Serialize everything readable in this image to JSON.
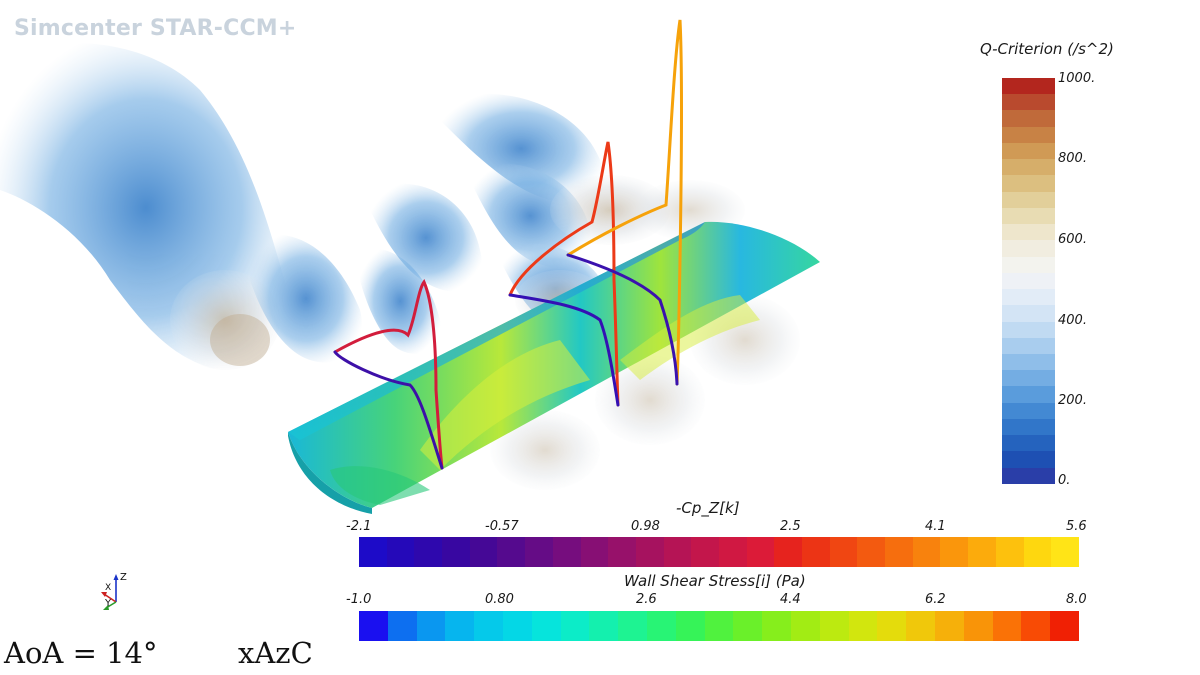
{
  "app": {
    "watermark": "Simcenter STAR-CCM+"
  },
  "legends": {
    "q_criterion": {
      "title": "Q-Criterion (/s^2)",
      "ticks": [
        "1000.",
        "800.",
        "600.",
        "400.",
        "200.",
        "0."
      ],
      "colors": [
        "#b3261e",
        "#b94a2e",
        "#c06a3a",
        "#c88245",
        "#d09a55",
        "#d6ae6a",
        "#dcbf80",
        "#e2cf9a",
        "#e8dcb3",
        "#eee6cc",
        "#f1ede0",
        "#f3f3ee",
        "#eef1f6",
        "#e2ecf7",
        "#d3e4f5",
        "#c0daf2",
        "#a9cdee",
        "#8fbee9",
        "#74ade3",
        "#5a9cdc",
        "#4389d3",
        "#3176c9",
        "#2563be",
        "#1e50b3",
        "#2a3ea8"
      ]
    },
    "cp": {
      "title": "-Cp_Z[k]",
      "ticks": [
        "-2.1",
        "-0.57",
        "0.98",
        "2.5",
        "4.1",
        "5.6"
      ],
      "colors": [
        "#1d0bc8",
        "#2509b9",
        "#2e08ad",
        "#3807a1",
        "#450896",
        "#550a8e",
        "#650c86",
        "#760d7e",
        "#870f74",
        "#97116a",
        "#a6125f",
        "#b51455",
        "#c3164b",
        "#d01842",
        "#dc1b38",
        "#e6231e",
        "#ec3415",
        "#f04612",
        "#f35a10",
        "#f66e0e",
        "#f8820d",
        "#fa960c",
        "#fcab0c",
        "#fdc10d",
        "#fed70f",
        "#ffe417"
      ]
    },
    "wss": {
      "title": "Wall Shear Stress[i] (Pa)",
      "ticks": [
        "-1.0",
        "0.80",
        "2.6",
        "4.4",
        "6.2",
        "8.0"
      ],
      "colors": [
        "#1a10f0",
        "#0d6ff0",
        "#0a97f0",
        "#06b5ee",
        "#05c9ea",
        "#04d7e6",
        "#06e4dc",
        "#0cecc8",
        "#14f0ae",
        "#1ef392",
        "#28f475",
        "#36f358",
        "#50f23e",
        "#6af02a",
        "#86ee1c",
        "#a2ec14",
        "#bcea10",
        "#d2e60e",
        "#e4dc0c",
        "#f0c80b",
        "#f6b00a",
        "#f99408",
        "#fa7206",
        "#f84b05",
        "#f02004"
      ]
    }
  },
  "captions": {
    "aoa": "AoA = 14°",
    "config": "xAzC"
  },
  "triad_labels": {
    "x": "X",
    "y": "Y",
    "z": "Z"
  }
}
